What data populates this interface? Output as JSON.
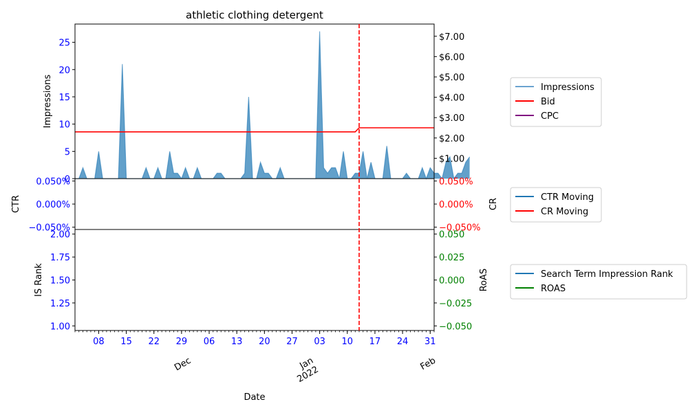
{
  "chart_data": {
    "type": "line",
    "title": "athletic clothing detergent",
    "xlabel": "Date",
    "x_range": [
      "2021-11-02",
      "2022-02-01"
    ],
    "x_major_ticks": [
      {
        "date": "2021-11-08",
        "label": "08"
      },
      {
        "date": "2021-11-15",
        "label": "15"
      },
      {
        "date": "2021-11-22",
        "label": "22"
      },
      {
        "date": "2021-11-29",
        "label": "29"
      },
      {
        "date": "2021-12-06",
        "label": "06"
      },
      {
        "date": "2021-12-13",
        "label": "13"
      },
      {
        "date": "2021-12-20",
        "label": "20"
      },
      {
        "date": "2021-12-27",
        "label": "27"
      },
      {
        "date": "2022-01-03",
        "label": "03"
      },
      {
        "date": "2022-01-10",
        "label": "10"
      },
      {
        "date": "2022-01-17",
        "label": "17"
      },
      {
        "date": "2022-01-24",
        "label": "24"
      },
      {
        "date": "2022-01-31",
        "label": "31"
      }
    ],
    "x_month_labels": [
      {
        "date": "2021-12-01",
        "label": "Dec"
      },
      {
        "date": "2022-01-01",
        "label": "Jan\n2022"
      },
      {
        "date": "2022-02-01",
        "label": "Feb"
      }
    ],
    "vline": {
      "date": "2022-01-13",
      "color": "#ff0000",
      "style": "dashed"
    },
    "panels": [
      {
        "id": "top",
        "ylabel_left": "Impressions",
        "ylim_left": [
          0,
          28.35
        ],
        "yticks_left": [
          {
            "v": 0,
            "t": "0"
          },
          {
            "v": 5,
            "t": "5"
          },
          {
            "v": 10,
            "t": "10"
          },
          {
            "v": 15,
            "t": "15"
          },
          {
            "v": 20,
            "t": "20"
          },
          {
            "v": 25,
            "t": "25"
          }
        ],
        "left_tick_color": "#0000ff",
        "ylim_right": [
          0,
          7.6
        ],
        "yticks_right": [
          {
            "v": 1,
            "t": "$1.00"
          },
          {
            "v": 2,
            "t": "$2.00"
          },
          {
            "v": 3,
            "t": "$3.00"
          },
          {
            "v": 4,
            "t": "$4.00"
          },
          {
            "v": 5,
            "t": "$5.00"
          },
          {
            "v": 6,
            "t": "$6.00"
          },
          {
            "v": 7,
            "t": "$7.00"
          }
        ],
        "right_tick_color": "#000000",
        "legend": [
          {
            "label": "Impressions",
            "color": "#6aa3cf"
          },
          {
            "label": "Bid",
            "color": "#ff0000"
          },
          {
            "label": "CPC",
            "color": "#800080"
          }
        ],
        "series": [
          {
            "name": "Impressions",
            "kind": "area",
            "axis": "left",
            "color": "#1f77b4",
            "start": "2021-11-02",
            "values": [
              0,
              0,
              2,
              0,
              0,
              0,
              5,
              0,
              0,
              0,
              0,
              0,
              21,
              0,
              0,
              0,
              0,
              0,
              2,
              0,
              0,
              2,
              0,
              0,
              5,
              1,
              1,
              0,
              2,
              0,
              0,
              2,
              0,
              0,
              0,
              0,
              1,
              1,
              0,
              0,
              0,
              0,
              0,
              1,
              15,
              0,
              0,
              3,
              1,
              1,
              0,
              0,
              2,
              0,
              0,
              0,
              0,
              0,
              0,
              0,
              0,
              0,
              27,
              2,
              1,
              2,
              2,
              0,
              5,
              0,
              0,
              1,
              1,
              5,
              0,
              3,
              0,
              0,
              0,
              6,
              0,
              0,
              0,
              0,
              1,
              0,
              0,
              0,
              2,
              0,
              2,
              1,
              1,
              0,
              3,
              4,
              0,
              1,
              1,
              3,
              4
            ]
          },
          {
            "name": "Bid",
            "kind": "line",
            "axis": "right",
            "color": "#ff0000",
            "points": [
              [
                "2021-11-02",
                2.3
              ],
              [
                "2022-01-12",
                2.3
              ],
              [
                "2022-01-13",
                2.5
              ],
              [
                "2022-02-01",
                2.5
              ]
            ]
          }
        ]
      },
      {
        "id": "middle",
        "ylabel_left": "CTR",
        "ylabel_right": "CR",
        "ylim_left": [
          -0.055,
          0.055
        ],
        "yticks_left": [
          {
            "v": -0.05,
            "t": "−0.050%"
          },
          {
            "v": 0,
            "t": "0.000%"
          },
          {
            "v": 0.05,
            "t": "0.050%"
          }
        ],
        "left_tick_color": "#0000ff",
        "ylim_right": [
          -0.055,
          0.055
        ],
        "yticks_right": [
          {
            "v": -0.05,
            "t": "−0.050%"
          },
          {
            "v": 0,
            "t": "0.000%"
          },
          {
            "v": 0.05,
            "t": "0.050%"
          }
        ],
        "right_tick_color": "#ff0000",
        "legend": [
          {
            "label": "CTR Moving",
            "color": "#1f77b4"
          },
          {
            "label": "CR Moving",
            "color": "#ff0000"
          }
        ],
        "series": []
      },
      {
        "id": "bottom",
        "ylabel_left": "IS Rank",
        "ylabel_right": "RoAS",
        "ylim_left": [
          0.95,
          2.05
        ],
        "yticks_left": [
          {
            "v": 1.0,
            "t": "1.00"
          },
          {
            "v": 1.25,
            "t": "1.25"
          },
          {
            "v": 1.5,
            "t": "1.50"
          },
          {
            "v": 1.75,
            "t": "1.75"
          },
          {
            "v": 2.0,
            "t": "2.00"
          }
        ],
        "left_tick_color": "#0000ff",
        "ylim_right": [
          -0.055,
          0.055
        ],
        "yticks_right": [
          {
            "v": -0.05,
            "t": "−0.050"
          },
          {
            "v": -0.025,
            "t": "−0.025"
          },
          {
            "v": 0,
            "t": "0.000"
          },
          {
            "v": 0.025,
            "t": "0.025"
          },
          {
            "v": 0.05,
            "t": "0.050"
          }
        ],
        "right_tick_color": "#008000",
        "legend": [
          {
            "label": "Search Term Impression Rank",
            "color": "#1f77b4"
          },
          {
            "label": "ROAS",
            "color": "#008000"
          }
        ],
        "series": []
      }
    ]
  }
}
